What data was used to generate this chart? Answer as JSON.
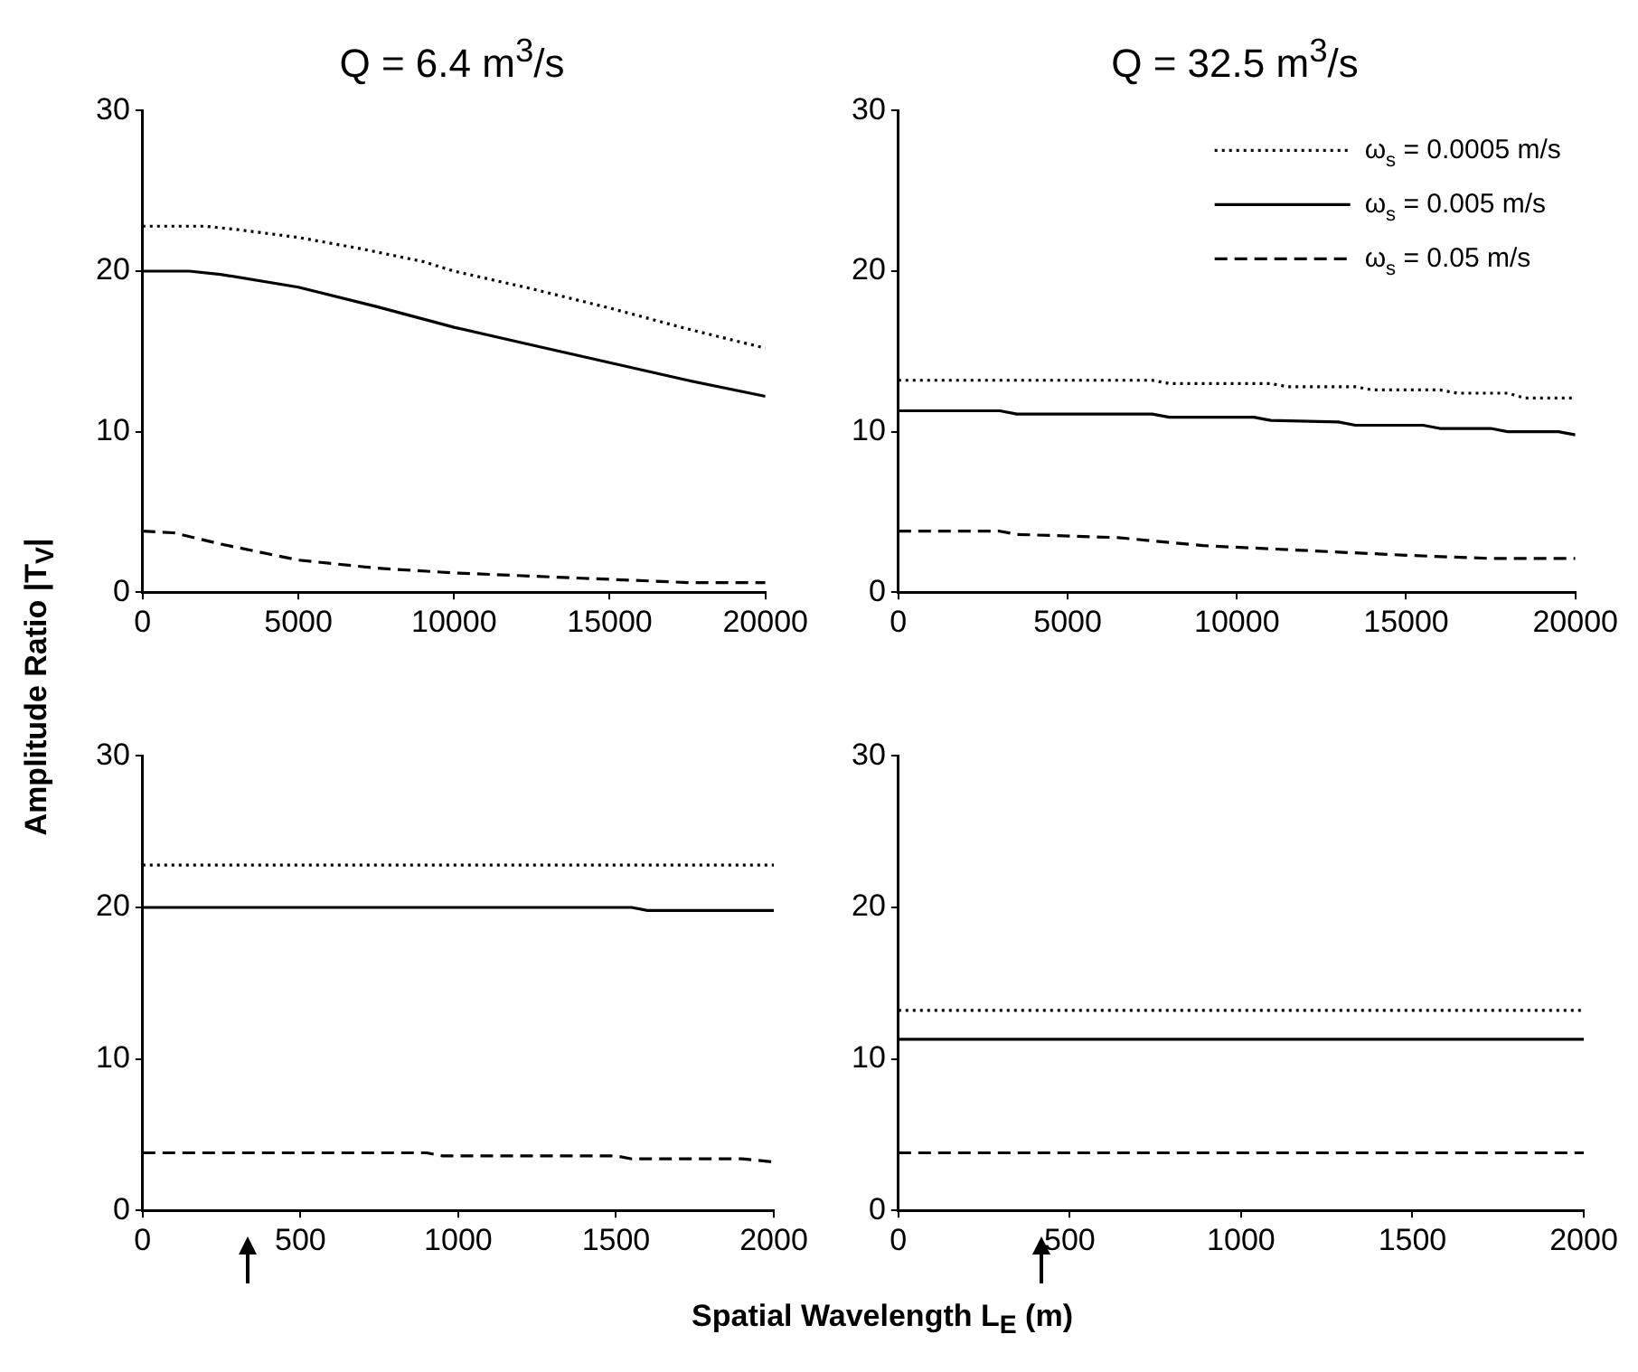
{
  "chart_data": [
    {
      "type": "line",
      "title": "Q = 6.4 m$^{3}$/s",
      "ylabel": "Amplitude Ratio |T$_{V}$|",
      "xlim": [
        0,
        20000
      ],
      "xticks": [
        0,
        5000,
        10000,
        15000,
        20000
      ],
      "ylim": [
        0,
        30
      ],
      "yticks": [
        0,
        10,
        20,
        30
      ],
      "grid": false,
      "legend": false,
      "marker": "none",
      "series": [
        {
          "color": "#000000",
          "line_style": "dotted",
          "x": [
            0,
            2000,
            3000,
            5000,
            7000,
            9000,
            10000,
            12500,
            15000,
            17500,
            20000
          ],
          "values": [
            22.8,
            22.8,
            22.6,
            22.1,
            21.4,
            20.6,
            20.0,
            18.9,
            17.7,
            16.4,
            15.2
          ]
        },
        {
          "color": "#000000",
          "line_style": "solid",
          "x": [
            0,
            1500,
            2500,
            5000,
            7500,
            10000,
            12500,
            15000,
            17500,
            20000
          ],
          "values": [
            20.0,
            20.0,
            19.8,
            19.0,
            17.8,
            16.5,
            15.4,
            14.3,
            13.2,
            12.2
          ]
        },
        {
          "color": "#000000",
          "line_style": "dashed",
          "x": [
            0,
            1000,
            2500,
            5000,
            7500,
            10000,
            12500,
            15000,
            17500,
            20000
          ],
          "values": [
            3.8,
            3.7,
            3.0,
            2.0,
            1.5,
            1.2,
            1.0,
            0.8,
            0.6,
            0.6
          ]
        }
      ]
    },
    {
      "type": "line",
      "title": "Q = 32.5 m$^{3}$/s",
      "xlim": [
        0,
        20000
      ],
      "xticks": [
        0,
        5000,
        10000,
        15000,
        20000
      ],
      "ylim": [
        0,
        30
      ],
      "yticks": [
        0,
        10,
        20,
        30
      ],
      "grid": false,
      "legend": "top right",
      "marker": "none",
      "series": [
        {
          "name": "ω$_{s}$ = 0.0005 m/s",
          "color": "#000000",
          "line_style": "dotted",
          "x": [
            0,
            7500,
            8000,
            11000,
            11500,
            13500,
            14000,
            16000,
            16500,
            18000,
            18500,
            20000
          ],
          "values": [
            13.2,
            13.2,
            13.0,
            13.0,
            12.8,
            12.8,
            12.6,
            12.6,
            12.4,
            12.4,
            12.1,
            12.1
          ]
        },
        {
          "name": "ω$_{s}$ = 0.005 m/s",
          "color": "#000000",
          "line_style": "solid",
          "x": [
            0,
            3000,
            3500,
            7500,
            8000,
            10500,
            11000,
            13000,
            13500,
            15500,
            16000,
            17500,
            18000,
            19500,
            20000
          ],
          "values": [
            11.3,
            11.3,
            11.1,
            11.1,
            10.9,
            10.9,
            10.7,
            10.6,
            10.4,
            10.4,
            10.2,
            10.2,
            10.0,
            10.0,
            9.8
          ]
        },
        {
          "name": "ω$_{s}$ = 0.05 m/s",
          "color": "#000000",
          "line_style": "dashed",
          "x": [
            0,
            3000,
            3500,
            6500,
            7500,
            9000,
            11000,
            13000,
            15000,
            17500,
            20000
          ],
          "values": [
            3.8,
            3.8,
            3.6,
            3.4,
            3.2,
            2.9,
            2.7,
            2.5,
            2.3,
            2.1,
            2.1
          ]
        }
      ]
    },
    {
      "type": "line",
      "xlabel": "Spatial Wavelength L$_{E}$ (m)",
      "xlim": [
        0,
        2000
      ],
      "xticks": [
        0,
        500,
        1000,
        1500,
        2000
      ],
      "ylim": [
        0,
        30
      ],
      "yticks": [
        0,
        10,
        20,
        30
      ],
      "grid": false,
      "legend": false,
      "marker": "none",
      "series": [
        {
          "color": "#000000",
          "line_style": "dotted",
          "x": [
            0,
            2000
          ],
          "values": [
            22.8,
            22.8
          ]
        },
        {
          "color": "#000000",
          "line_style": "solid",
          "x": [
            0,
            1550,
            1600,
            2000
          ],
          "values": [
            20.0,
            20.0,
            19.8,
            19.8
          ]
        },
        {
          "color": "#000000",
          "line_style": "dashed",
          "x": [
            0,
            900,
            950,
            1500,
            1550,
            1900,
            2000
          ],
          "values": [
            3.8,
            3.8,
            3.6,
            3.6,
            3.4,
            3.4,
            3.2
          ]
        }
      ]
    },
    {
      "type": "line",
      "xlim": [
        0,
        2000
      ],
      "xticks": [
        0,
        500,
        1000,
        1500,
        2000
      ],
      "ylim": [
        0,
        30
      ],
      "yticks": [
        0,
        10,
        20,
        30
      ],
      "grid": false,
      "legend": false,
      "marker": "none",
      "series": [
        {
          "color": "#000000",
          "line_style": "dotted",
          "x": [
            0,
            2000
          ],
          "values": [
            13.2,
            13.2
          ]
        },
        {
          "color": "#000000",
          "line_style": "solid",
          "x": [
            0,
            2000
          ],
          "values": [
            11.3,
            11.3
          ]
        },
        {
          "color": "#000000",
          "line_style": "dashed",
          "x": [
            0,
            2000
          ],
          "values": [
            3.8,
            3.8
          ]
        }
      ]
    }
  ]
}
